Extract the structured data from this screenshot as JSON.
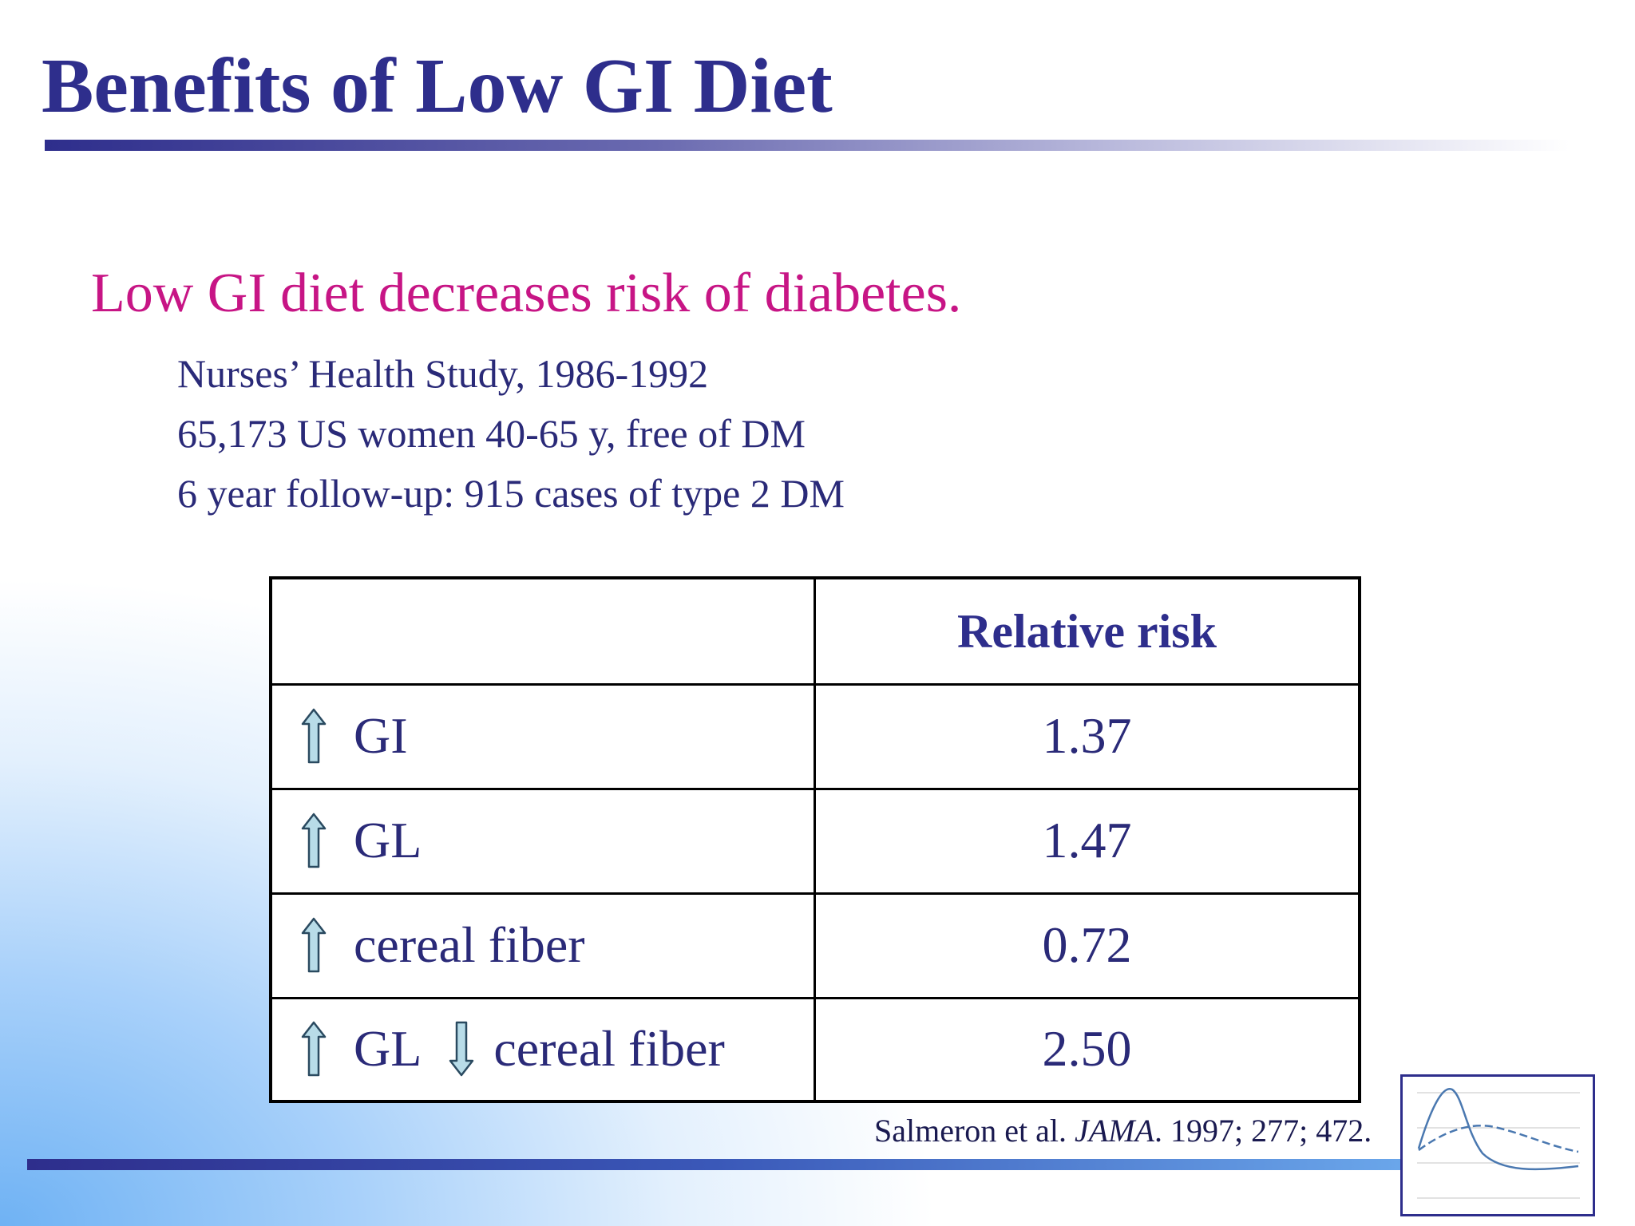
{
  "slide": {
    "title": "Benefits of Low GI Diet",
    "headline": "Low GI diet decreases risk of diabetes.",
    "details": [
      "Nurses’ Health Study, 1986-1992",
      "65,173 US women 40-65 y, free of DM",
      "6 year follow-up: 915 cases of type 2 DM"
    ]
  },
  "table": {
    "header": {
      "left": "",
      "right": "Relative risk"
    },
    "rows": [
      {
        "label": "GI",
        "value": "1.37"
      },
      {
        "label": "GL",
        "value": "1.47"
      },
      {
        "label": "cereal fiber",
        "value": "0.72"
      },
      {
        "label": "GL",
        "label2": "cereal fiber",
        "value": "2.50"
      }
    ]
  },
  "citation": {
    "authors": "Salmeron et al. ",
    "journal": "JAMA",
    "rest": ". 1997; 277; 472."
  },
  "colors": {
    "title": "#2e2e8c",
    "headline": "#c71585",
    "body_text": "#2a2a78",
    "arrow_fill": "#b8dce8"
  },
  "icons": {
    "up_arrow": "up-arrow-icon",
    "down_arrow": "down-arrow-icon",
    "logo": "glycemic-curve-logo"
  }
}
